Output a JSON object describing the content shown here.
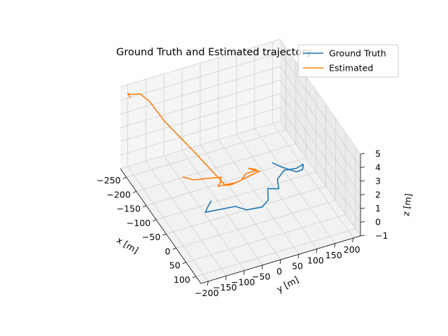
{
  "chart_data": {
    "type": "line3d",
    "title": "Ground Truth and Estimated trajectory",
    "xlabel": "x [m]",
    "ylabel": "y [m]",
    "zlabel": "z [m]",
    "xlim": [
      -280,
      125
    ],
    "ylim": [
      -220,
      220
    ],
    "zlim": [
      -1,
      5
    ],
    "x_ticks": [
      "−250",
      "−200",
      "−150",
      "−100",
      "−50",
      "0",
      "50",
      "100"
    ],
    "y_ticks": [
      "−200",
      "−150",
      "−100",
      "−50",
      "0",
      "50",
      "100",
      "150",
      "200"
    ],
    "z_ticks": [
      "−1",
      "0",
      "1",
      "2",
      "3",
      "4",
      "5"
    ],
    "grid": true,
    "legend_position": "top-right",
    "series": [
      {
        "name": "Ground Truth",
        "color": "#1f77b4",
        "x": [
          -60,
          -45,
          -35,
          -30,
          -10,
          -5,
          -20,
          -50,
          -40,
          -65,
          -85,
          -80,
          -90,
          -75,
          -70,
          -95,
          -110
        ],
        "y": [
          -90,
          -110,
          -120,
          -40,
          -20,
          20,
          45,
          60,
          85,
          95,
          125,
          155,
          180,
          170,
          150,
          120,
          105
        ],
        "z": [
          0.2,
          0.1,
          0.1,
          0.0,
          0.0,
          0.0,
          0.0,
          0.1,
          0.1,
          0.2,
          0.2,
          0.2,
          0.1,
          0.1,
          0.2,
          0.3,
          0.4
        ]
      },
      {
        "name": "Estimated",
        "color": "#ff7f0e",
        "x": [
          -150,
          -140,
          -120,
          -105,
          -100,
          -95,
          -90,
          -105,
          -100,
          -110,
          -100,
          -95,
          -100,
          -85,
          -80,
          -170,
          -240,
          -280,
          -290,
          -280,
          -270,
          -240
        ],
        "y": [
          -120,
          -95,
          -30,
          -40,
          -50,
          0,
          10,
          30,
          55,
          40,
          55,
          55,
          65,
          -20,
          -40,
          -80,
          -120,
          -140,
          -160,
          -190,
          -205,
          -215
        ],
        "z": [
          0.3,
          0.1,
          0.2,
          0.2,
          0.1,
          0.1,
          0.3,
          0.3,
          0.4,
          0.5,
          0.5,
          0.5,
          0.3,
          0.3,
          0.5,
          1.5,
          2.5,
          3.3,
          3.8,
          4.2,
          4.6,
          5.0
        ]
      }
    ]
  }
}
